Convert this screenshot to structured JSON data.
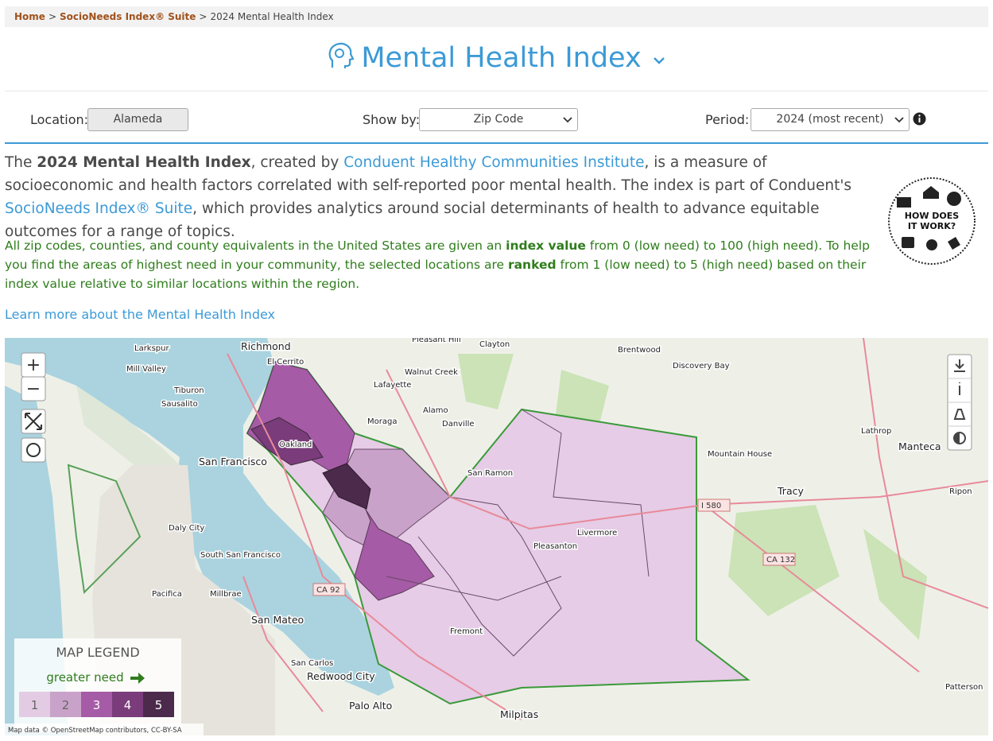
{
  "breadcrumb": {
    "items": [
      "Home",
      "SocioNeeds Index® Suite",
      "2024 Mental Health Index"
    ],
    "separator": ">"
  },
  "header": {
    "title": "Mental Health Index"
  },
  "controls": {
    "location_label": "Location:",
    "location_value": "Alameda",
    "show_by_label": "Show by:",
    "show_by_value": "Zip Code",
    "period_label": "Period:",
    "period_value": "2024 (most recent)"
  },
  "intro": [
    {
      "text": "The ",
      "style": "plain"
    },
    {
      "text": "2024 Mental Health Index",
      "style": "bold"
    },
    {
      "text": ", created by ",
      "style": "plain"
    },
    {
      "text": "Conduent Healthy Communities Institute",
      "style": "link"
    },
    {
      "text": ", is a measure of socioeconomic and health factors correlated with self-reported poor mental health. The index is part of Conduent's ",
      "style": "plain"
    },
    {
      "text": "SocioNeeds Index® Suite",
      "style": "link"
    },
    {
      "text": ", which provides analytics around social determinants of health to advance equitable outcomes for a range of topics.",
      "style": "plain"
    }
  ],
  "detail": [
    {
      "text": "All zip codes, counties, and county equivalents in the United States are given an ",
      "style": "plain"
    },
    {
      "text": "index value",
      "style": "bold"
    },
    {
      "text": " from 0 (low need) to 100 (high need). To help you find the areas of highest need in your community, the selected locations are ",
      "style": "plain"
    },
    {
      "text": "ranked",
      "style": "bold"
    },
    {
      "text": " from 1 (low need) to 5 (high need) based on their index value relative to similar locations within the region.",
      "style": "plain"
    }
  ],
  "learn_more": "Learn more about the Mental Health Index",
  "badge": {
    "line1": "HOW DOES",
    "line2": "IT WORK?"
  },
  "map": {
    "zoom_in": "+",
    "zoom_out": "−",
    "legend": {
      "title": "MAP LEGEND",
      "direction": "greater need",
      "levels": [
        {
          "label": "1",
          "color": "#e3cce3"
        },
        {
          "label": "2",
          "color": "#c9a2c9"
        },
        {
          "label": "3",
          "color": "#a55ba5"
        },
        {
          "label": "4",
          "color": "#7a3c7a"
        },
        {
          "label": "5",
          "color": "#4c2a4c"
        }
      ]
    },
    "attribution": "Map data © OpenStreetMap contributors, CC-BY-SA",
    "places": [
      "Richmond",
      "El Cerrito",
      "Larkspur",
      "Mill Valley",
      "Tiburon",
      "Sausalito",
      "San Francisco",
      "Daly City",
      "South San Francisco",
      "Pacifica",
      "Millbrae",
      "San Mateo",
      "San Carlos",
      "Redwood City",
      "Palo Alto",
      "Milpitas",
      "Pleasant Hill",
      "Clayton",
      "Walnut Creek",
      "Lafayette",
      "Moraga",
      "Alamo",
      "Danville",
      "San Ramon",
      "Brentwood",
      "Discovery Bay",
      "Mountain House",
      "Tracy",
      "Lathrop",
      "Manteca",
      "Ripon",
      "Patterson",
      "Oakland",
      "Pleasanton",
      "Livermore",
      "Fremont"
    ],
    "roads": [
      "CA 92",
      "I 580",
      "CA 132"
    ]
  }
}
